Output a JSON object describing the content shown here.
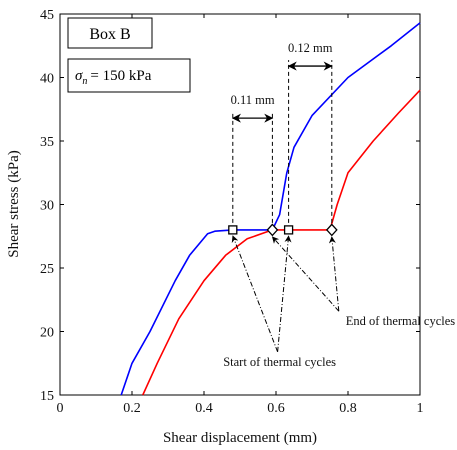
{
  "chart_data": {
    "type": "line",
    "xlabel": "Shear displacement (mm)",
    "ylabel": "Shear stress (kPa)",
    "xlim": [
      0,
      1
    ],
    "ylim": [
      15,
      45
    ],
    "xticks": [
      0,
      0.2,
      0.4,
      0.6,
      0.8,
      1
    ],
    "yticks": [
      15,
      20,
      25,
      30,
      35,
      40,
      45
    ],
    "xtick_labels": [
      "0",
      "0.2",
      "0.4",
      "0.6",
      "0.8",
      "1"
    ],
    "ytick_labels": [
      "15",
      "20",
      "25",
      "30",
      "35",
      "40",
      "45"
    ],
    "grid": false,
    "colors": {
      "series_blue": "#0000ff",
      "series_red": "#ff0000",
      "axes": "#000000"
    },
    "info_box": {
      "title": "Box B",
      "stress_symbol": "σ",
      "stress_subscript": "n",
      "stress_value": "= 150 kPa"
    },
    "series": [
      {
        "color": "#0000ff",
        "points": [
          [
            0.17,
            15
          ],
          [
            0.2,
            17.5
          ],
          [
            0.25,
            20
          ],
          [
            0.32,
            24
          ],
          [
            0.36,
            26
          ],
          [
            0.41,
            27.7
          ],
          [
            0.43,
            27.9
          ],
          [
            0.48,
            28
          ],
          [
            0.59,
            28
          ],
          [
            0.61,
            29.2
          ],
          [
            0.63,
            32.5
          ],
          [
            0.65,
            34.5
          ],
          [
            0.7,
            37
          ],
          [
            0.8,
            40
          ],
          [
            0.92,
            42.5
          ],
          [
            1,
            44.3
          ]
        ]
      },
      {
        "color": "#ff0000",
        "points": [
          [
            0.23,
            15
          ],
          [
            0.27,
            17.5
          ],
          [
            0.33,
            21
          ],
          [
            0.4,
            24
          ],
          [
            0.46,
            26
          ],
          [
            0.52,
            27.3
          ],
          [
            0.59,
            28
          ],
          [
            0.75,
            28
          ],
          [
            0.77,
            30
          ],
          [
            0.8,
            32.5
          ],
          [
            0.87,
            35
          ],
          [
            0.94,
            37.2
          ],
          [
            1,
            39
          ]
        ]
      }
    ],
    "markers": [
      {
        "shape": "square",
        "x": 0.48,
        "y": 28
      },
      {
        "shape": "diamond",
        "x": 0.59,
        "y": 28
      },
      {
        "shape": "square",
        "x": 0.635,
        "y": 28
      },
      {
        "shape": "diamond",
        "x": 0.755,
        "y": 28
      }
    ],
    "intervals": [
      {
        "label": "0.11 mm",
        "x_start": 0.48,
        "x_end": 0.59,
        "y": 36.8
      },
      {
        "label": "0.12 mm",
        "x_start": 0.635,
        "x_end": 0.755,
        "y": 40.9
      }
    ],
    "annotations": [
      {
        "text": "End of thermal cycles",
        "x": 0.78,
        "y": 20.5
      },
      {
        "text": "Start of thermal cycles",
        "x": 0.61,
        "y": 17.3
      }
    ]
  }
}
